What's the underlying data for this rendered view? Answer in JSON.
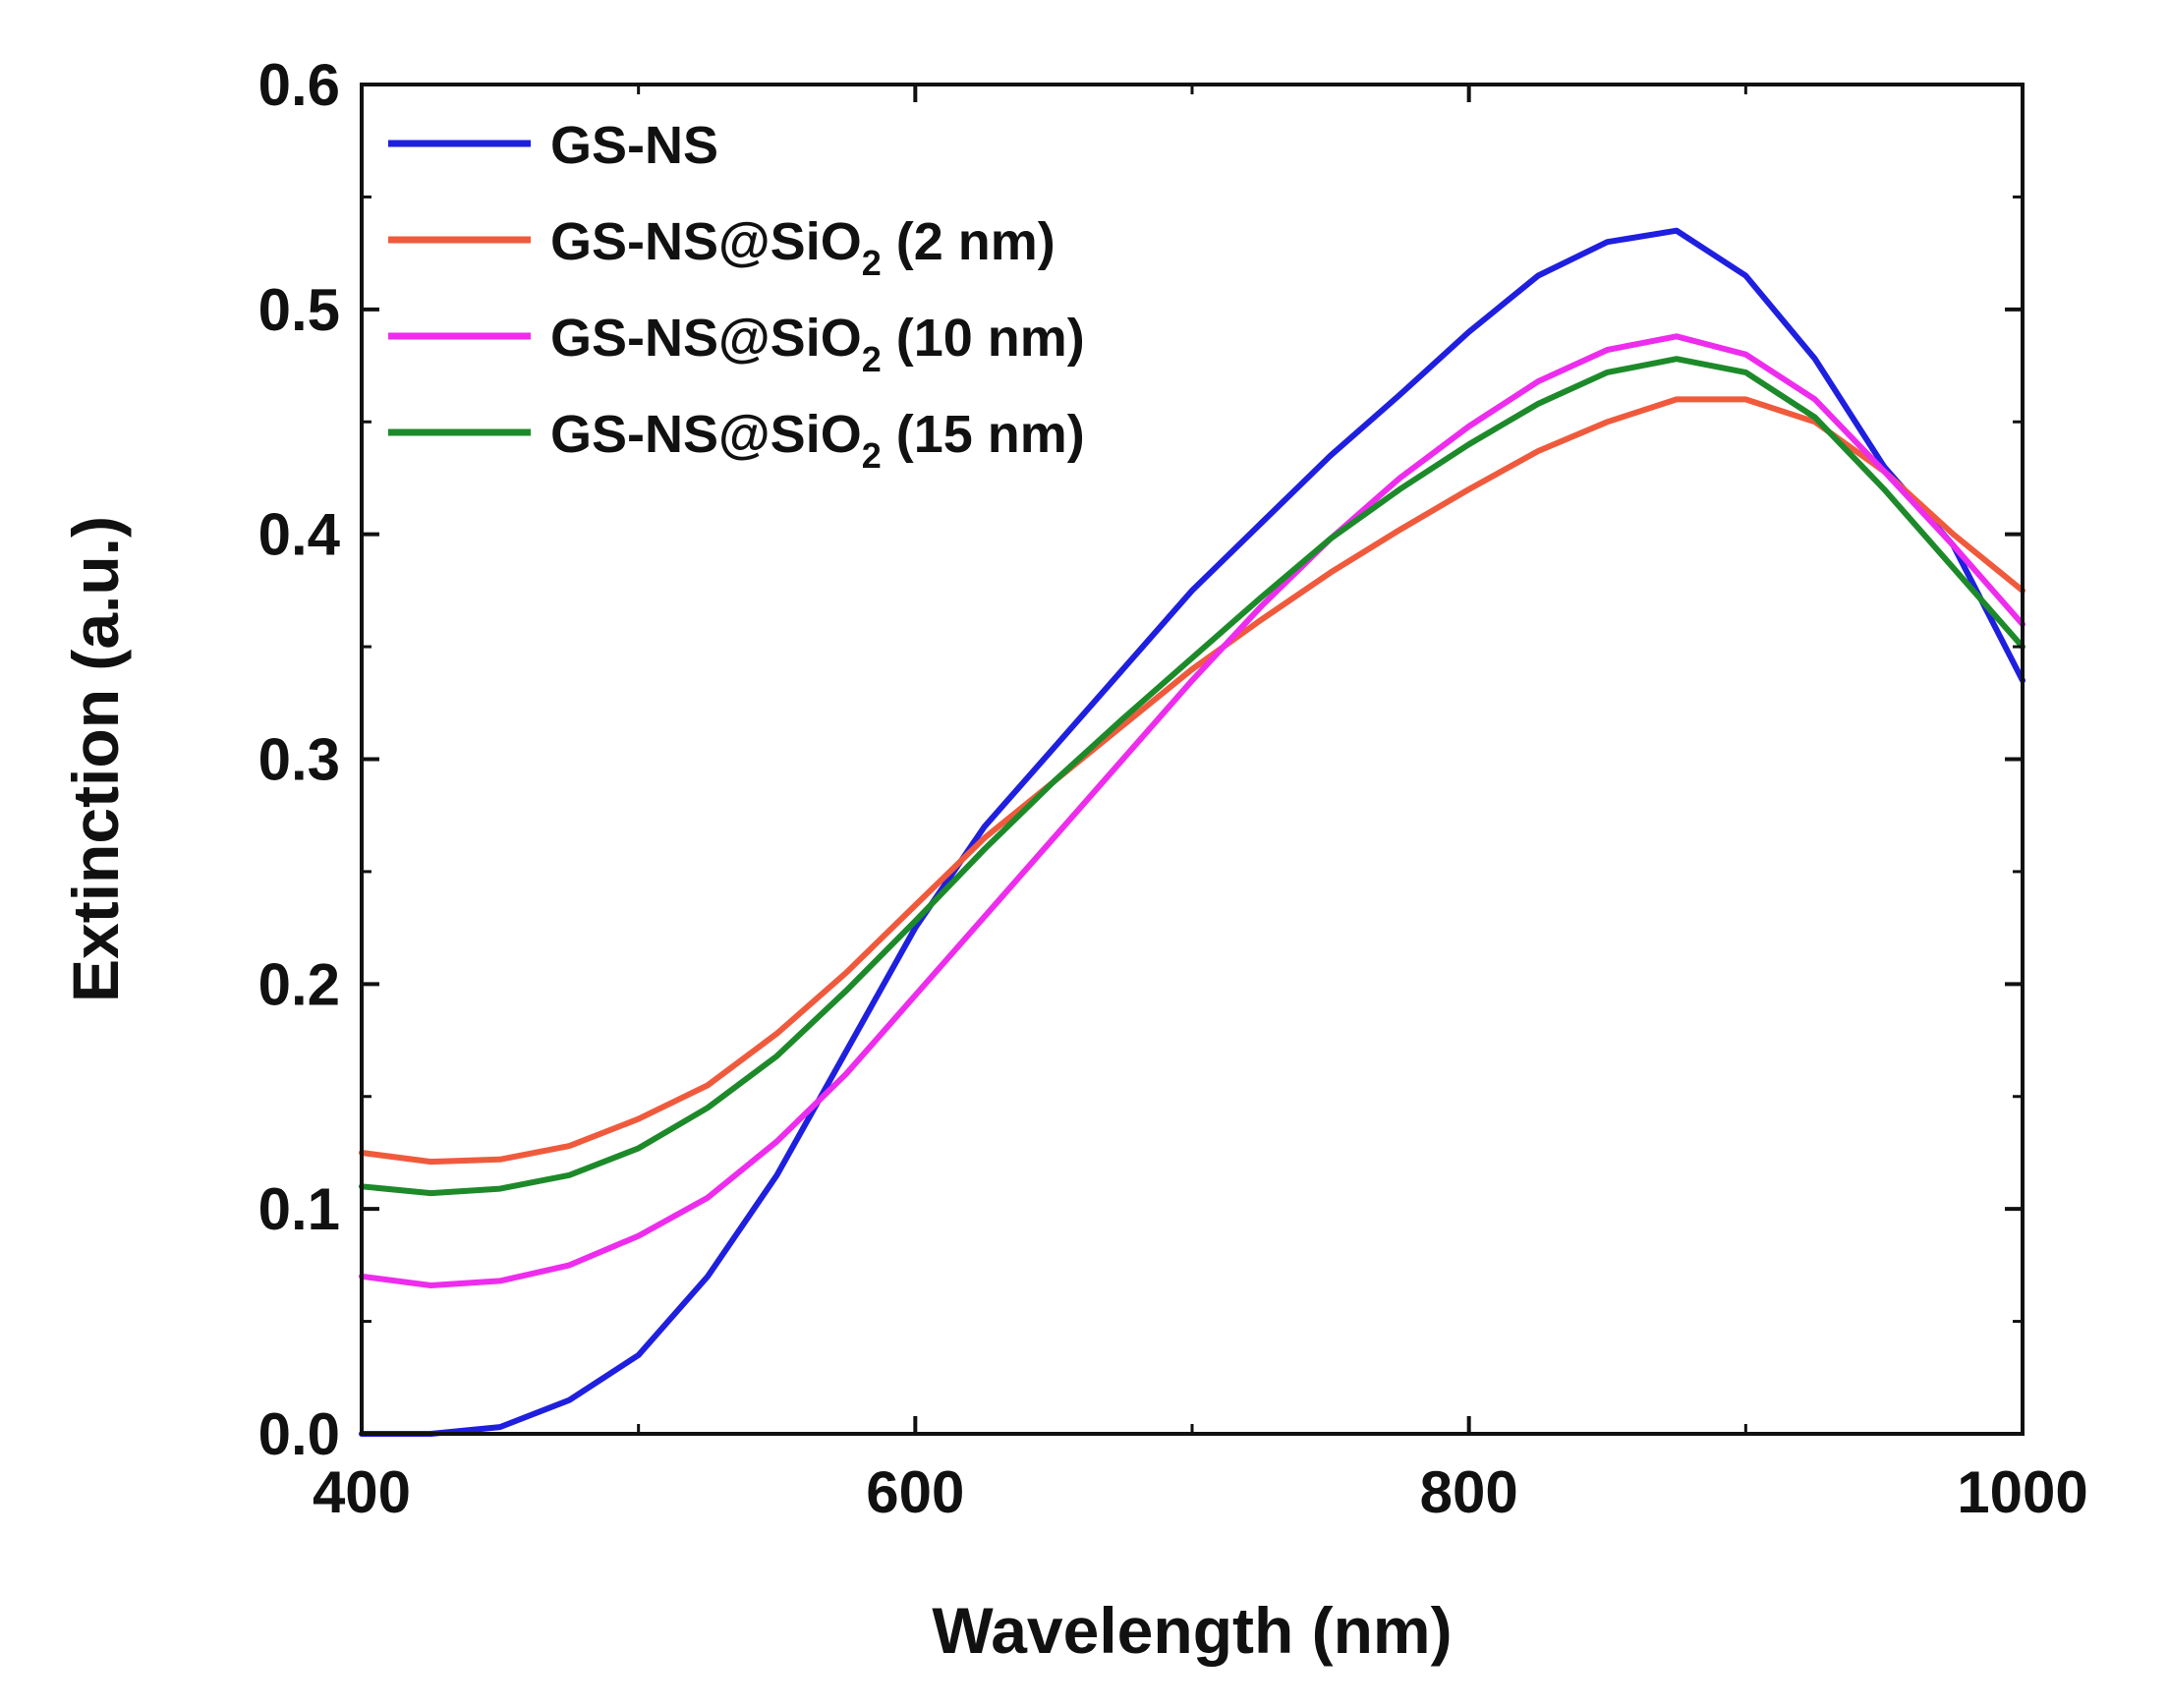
{
  "chart_data": {
    "type": "line",
    "title": "",
    "xlabel": "Wavelength (nm)",
    "ylabel": "Extinction (a.u.)",
    "xlim": [
      400,
      1000
    ],
    "ylim": [
      0.0,
      0.6
    ],
    "xticks": [
      400,
      600,
      800,
      1000
    ],
    "xtick_labels": [
      "400",
      "600",
      "800",
      "1000"
    ],
    "yticks": [
      0.0,
      0.1,
      0.2,
      0.3,
      0.4,
      0.5,
      0.6
    ],
    "ytick_labels": [
      "0.0",
      "0.1",
      "0.2",
      "0.3",
      "0.4",
      "0.5",
      "0.6"
    ],
    "grid": false,
    "legend_position": "top-left",
    "x": [
      400,
      425,
      450,
      475,
      500,
      525,
      550,
      575,
      600,
      625,
      650,
      675,
      700,
      725,
      750,
      775,
      800,
      825,
      850,
      875,
      900,
      925,
      950,
      975,
      1000
    ],
    "series": [
      {
        "name": "GS-NS",
        "subscript": "",
        "suffix": "",
        "color": "#1f1fe0",
        "values": [
          0.0,
          0.0,
          0.003,
          0.015,
          0.035,
          0.07,
          0.115,
          0.17,
          0.225,
          0.27,
          0.305,
          0.34,
          0.375,
          0.405,
          0.435,
          0.462,
          0.49,
          0.515,
          0.53,
          0.535,
          0.515,
          0.478,
          0.43,
          0.395,
          0.335
        ]
      },
      {
        "name": "GS-NS@SiO",
        "subscript": "2",
        "suffix": " (2 nm)",
        "color": "#f05a3c",
        "values": [
          0.125,
          0.121,
          0.122,
          0.128,
          0.14,
          0.155,
          0.178,
          0.205,
          0.235,
          0.265,
          0.29,
          0.315,
          0.34,
          0.362,
          0.383,
          0.402,
          0.42,
          0.437,
          0.45,
          0.46,
          0.46,
          0.45,
          0.428,
          0.4,
          0.375
        ]
      },
      {
        "name": "GS-NS@SiO",
        "subscript": "2",
        "suffix": " (10 nm)",
        "color": "#ee2cee",
        "values": [
          0.07,
          0.066,
          0.068,
          0.075,
          0.088,
          0.105,
          0.13,
          0.16,
          0.195,
          0.23,
          0.265,
          0.3,
          0.335,
          0.368,
          0.398,
          0.425,
          0.448,
          0.468,
          0.482,
          0.488,
          0.48,
          0.46,
          0.428,
          0.395,
          0.36
        ]
      },
      {
        "name": "GS-NS@SiO",
        "subscript": "2",
        "suffix": " (15 nm)",
        "color": "#1d8a2a",
        "values": [
          0.11,
          0.107,
          0.109,
          0.115,
          0.127,
          0.145,
          0.168,
          0.197,
          0.228,
          0.26,
          0.29,
          0.318,
          0.345,
          0.372,
          0.398,
          0.42,
          0.44,
          0.458,
          0.472,
          0.478,
          0.472,
          0.452,
          0.42,
          0.385,
          0.35
        ]
      }
    ]
  }
}
